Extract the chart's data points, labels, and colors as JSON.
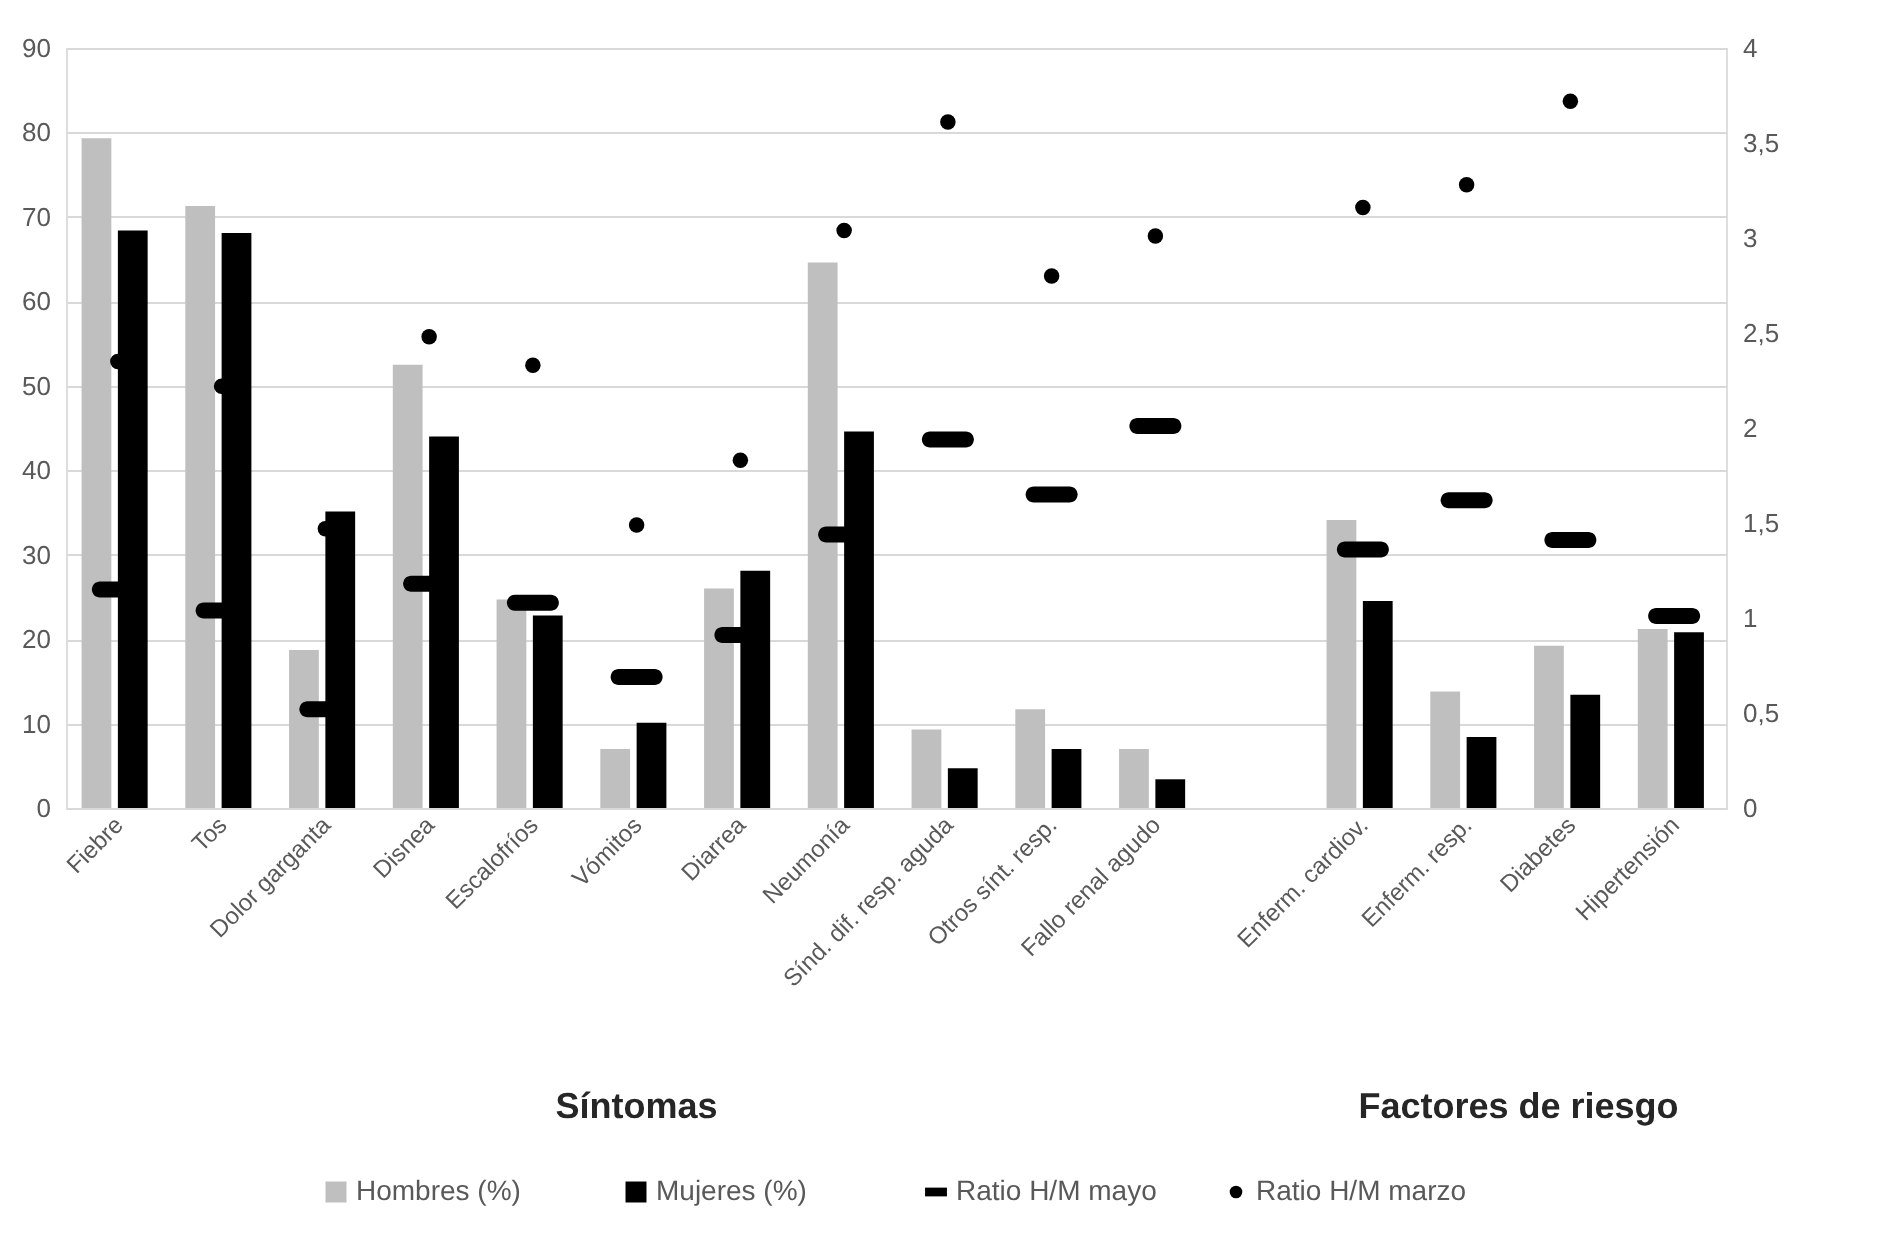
{
  "chart_data": {
    "type": "bar",
    "categories": [
      "Fiebre",
      "Tos",
      "Dolor garganta",
      "Disnea",
      "Escalofríos",
      "Vómitos",
      "Diarrea",
      "Neumonía",
      "Sínd. dif. resp. aguda",
      "Otros sínt. resp.",
      "Fallo renal agudo",
      null,
      "Enferm. cardiov.",
      "Enferm. resp.",
      "Diabetes",
      "Hipertensión"
    ],
    "series": [
      {
        "name": "Hombres  (%)",
        "color": "#bfbfbf",
        "values": [
          79.3,
          71.3,
          18.7,
          52.5,
          24.7,
          7,
          26,
          64.6,
          9.3,
          11.7,
          7,
          null,
          34.1,
          13.8,
          19.2,
          21.2
        ]
      },
      {
        "name": "Mujeres (%)",
        "color": "#000000",
        "values": [
          68.4,
          68.1,
          35.1,
          44,
          22.8,
          10.1,
          28.1,
          44.6,
          4.7,
          7,
          3.4,
          null,
          24.5,
          8.4,
          13.4,
          20.8
        ]
      },
      {
        "name": "Ratio H/M mayo",
        "type": "scatter",
        "marker": "square",
        "axis": "y2",
        "color": "#000000",
        "values": [
          1.15,
          1.04,
          0.52,
          1.18,
          1.08,
          0.69,
          0.91,
          1.44,
          1.94,
          1.65,
          2.01,
          null,
          1.36,
          1.62,
          1.41,
          1.01
        ]
      },
      {
        "name": "Ratio H/M marzo",
        "type": "scatter",
        "marker": "circle",
        "axis": "y2",
        "color": "#000000",
        "values": [
          2.35,
          2.22,
          1.47,
          2.48,
          2.33,
          1.49,
          1.83,
          3.04,
          3.61,
          2.8,
          3.01,
          null,
          3.16,
          3.28,
          3.72,
          null
        ]
      }
    ],
    "ylim": [
      0,
      90
    ],
    "yticks": [
      0,
      10,
      20,
      30,
      40,
      50,
      60,
      70,
      80,
      90
    ],
    "y2lim": [
      0,
      4
    ],
    "y2ticks": [
      0,
      {
        "value": 0.5,
        "label": "0,5"
      },
      1,
      {
        "value": 1.5,
        "label": "1,5"
      },
      2,
      {
        "value": 2.5,
        "label": "2,5"
      },
      3,
      {
        "value": 3.5,
        "label": "3,5"
      },
      4
    ],
    "annotations": [
      "Síntomas",
      "Factores de riesgo"
    ],
    "grid": "y",
    "legend": "bottom"
  }
}
